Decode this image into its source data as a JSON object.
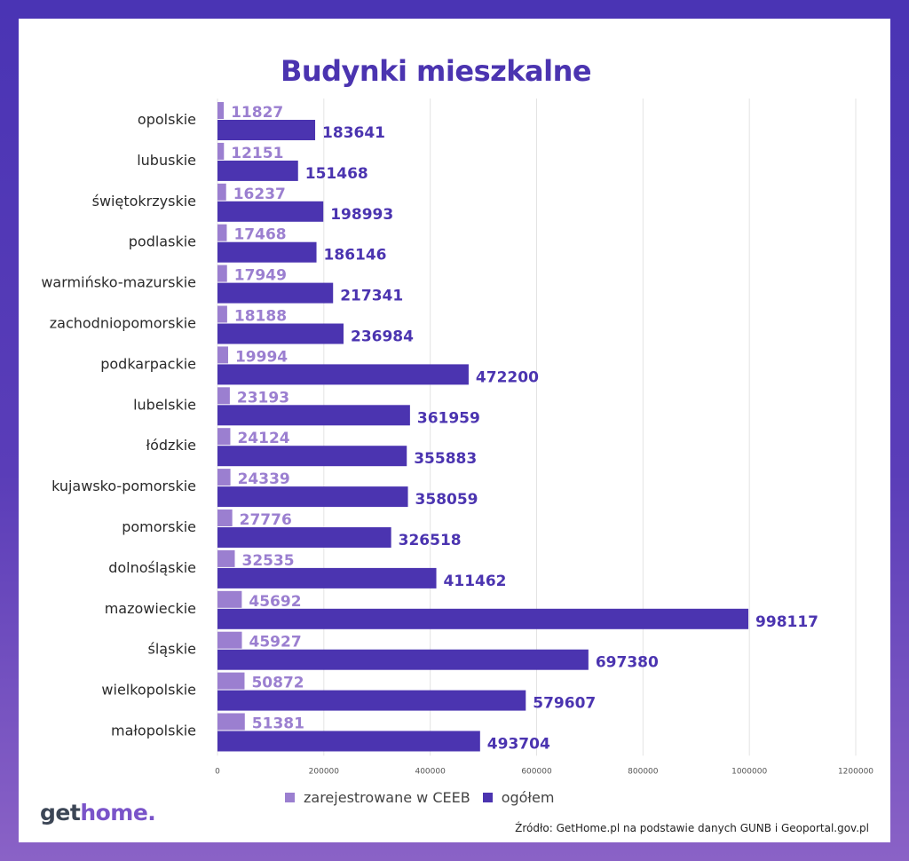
{
  "chart_data": {
    "type": "bar",
    "orientation": "horizontal",
    "title": "Budynki mieszkalne",
    "categories": [
      "opolskie",
      "lubuskie",
      "świętokrzyskie",
      "podlaskie",
      "warmińsko-mazurskie",
      "zachodniopomorskie",
      "podkarpackie",
      "lubelskie",
      "łódzkie",
      "kujawsko-pomorskie",
      "pomorskie",
      "dolnośląskie",
      "mazowieckie",
      "śląskie",
      "wielkopolskie",
      "małopolskie"
    ],
    "series": [
      {
        "name": "zarejestrowane w CEEB",
        "color": "#9b7fd0",
        "values": [
          11827,
          12151,
          16237,
          17468,
          17949,
          18188,
          19994,
          23193,
          24124,
          24339,
          27776,
          32535,
          45692,
          45927,
          50872,
          51381
        ]
      },
      {
        "name": "ogółem",
        "color": "#4b34b0",
        "values": [
          183641,
          151468,
          198993,
          186146,
          217341,
          236984,
          472200,
          361959,
          355883,
          358059,
          326518,
          411462,
          998117,
          697380,
          579607,
          493704
        ]
      }
    ],
    "xlim": [
      0,
      1200000
    ],
    "xticks": [
      0,
      200000,
      400000,
      600000,
      800000,
      1000000,
      1200000
    ],
    "grid": true,
    "legend_position": "bottom"
  },
  "footer": {
    "logo_part1": "get",
    "logo_part2": "home.",
    "source": "Źródło: GetHome.pl na podstawie danych GUNB i Geoportal.gov.pl"
  }
}
